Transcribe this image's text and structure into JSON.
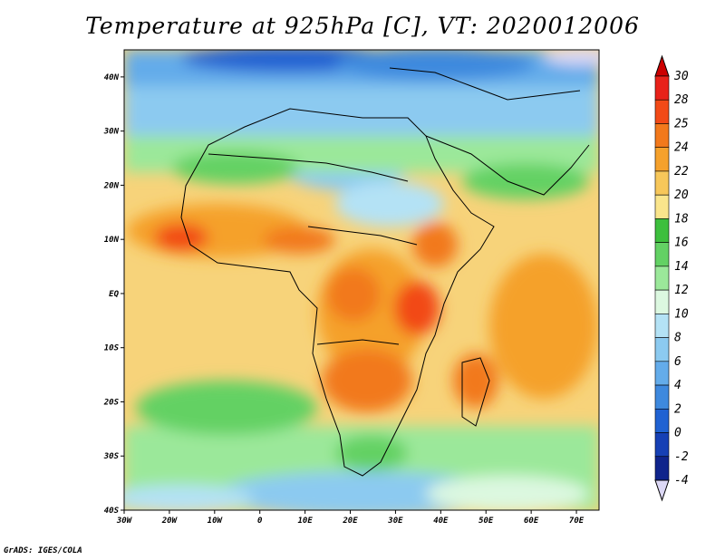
{
  "title": "Temperature at 925hPa [C], VT: 2020012006",
  "credit": "GrADS: IGES/COLA",
  "map": {
    "lon_range": [
      -30,
      75
    ],
    "lat_range": [
      -40,
      45
    ],
    "lat_ticks": [
      {
        "value": 40,
        "label": "40N"
      },
      {
        "value": 30,
        "label": "30N"
      },
      {
        "value": 20,
        "label": "20N"
      },
      {
        "value": 10,
        "label": "10N"
      },
      {
        "value": 0,
        "label": "EQ"
      },
      {
        "value": -10,
        "label": "10S"
      },
      {
        "value": -20,
        "label": "20S"
      },
      {
        "value": -30,
        "label": "30S"
      },
      {
        "value": -40,
        "label": "40S"
      }
    ],
    "lon_ticks": [
      {
        "value": -30,
        "label": "30W"
      },
      {
        "value": -20,
        "label": "20W"
      },
      {
        "value": -10,
        "label": "10W"
      },
      {
        "value": 0,
        "label": "0"
      },
      {
        "value": 10,
        "label": "10E"
      },
      {
        "value": 20,
        "label": "20E"
      },
      {
        "value": 30,
        "label": "30E"
      },
      {
        "value": 40,
        "label": "40E"
      },
      {
        "value": 50,
        "label": "50E"
      },
      {
        "value": 60,
        "label": "60E"
      },
      {
        "value": 70,
        "label": "70E"
      }
    ]
  },
  "colorbar": {
    "levels": [
      {
        "label": "30",
        "color": "#e8221a"
      },
      {
        "label": "28",
        "color": "#f24a17"
      },
      {
        "label": "25",
        "color": "#f2791c"
      },
      {
        "label": "24",
        "color": "#f5a12c"
      },
      {
        "label": "22",
        "color": "#f7c75a"
      },
      {
        "label": "20",
        "color": "#fae58c"
      },
      {
        "label": "18",
        "color": "#3dbf3d"
      },
      {
        "label": "16",
        "color": "#63d164"
      },
      {
        "label": "14",
        "color": "#9be89a"
      },
      {
        "label": "12",
        "color": "#dcf8e0"
      },
      {
        "label": "10",
        "color": "#b4e2f5"
      },
      {
        "label": "8",
        "color": "#8ccaf0"
      },
      {
        "label": "6",
        "color": "#64acea"
      },
      {
        "label": "4",
        "color": "#3e89de"
      },
      {
        "label": "2",
        "color": "#2062d2"
      },
      {
        "label": "0",
        "color": "#1640b5"
      },
      {
        "label": "-2",
        "color": "#0f248c"
      },
      {
        "label": "-4",
        "color": "#dcd8f5"
      }
    ],
    "top_color": "#cc0000"
  }
}
